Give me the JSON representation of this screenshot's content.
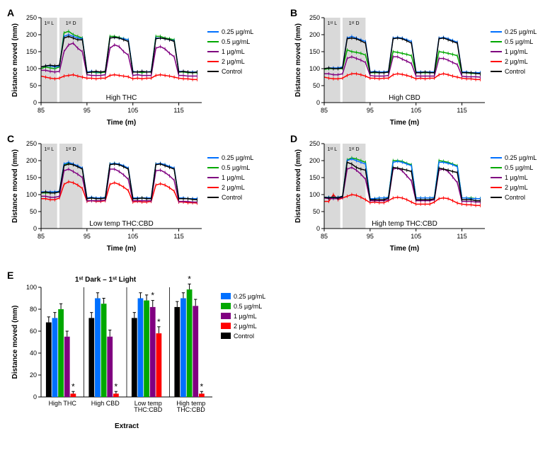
{
  "colors": {
    "c025": "#0070ff",
    "c05": "#00a800",
    "c1": "#800080",
    "c2": "#ff0000",
    "ctrl": "#000000",
    "shade": "#d9d9d9",
    "sig": "#000000"
  },
  "legend_items": [
    {
      "label": "0.25 µg/mL",
      "color": "#0070ff"
    },
    {
      "label": "0.5 µg/mL",
      "color": "#00a800"
    },
    {
      "label": "1 µg/mL",
      "color": "#800080"
    },
    {
      "label": "2 µg/mL",
      "color": "#ff0000"
    },
    {
      "label": "Control",
      "color": "#000000"
    }
  ],
  "line_panels": {
    "common": {
      "xlabel": "Time (m)",
      "ylabel": "Distance moved (mm)",
      "xlim": [
        85,
        120
      ],
      "ylim": [
        0,
        250
      ],
      "xticks": [
        85,
        95,
        105,
        115
      ],
      "yticks": [
        0,
        50,
        100,
        150,
        200,
        250
      ],
      "shade1_label": "1ˢᵗ L",
      "shade2_label": "1ˢᵗ D",
      "shade1": [
        85,
        88.5
      ],
      "shade2": [
        89,
        94
      ],
      "x_points": [
        85,
        86,
        87,
        88,
        89,
        90,
        91,
        92,
        93,
        94,
        95,
        96,
        97,
        98,
        99,
        100,
        101,
        102,
        103,
        104,
        105,
        106,
        107,
        108,
        109,
        110,
        111,
        112,
        113,
        114,
        115,
        116,
        117,
        118,
        119
      ]
    },
    "panels": [
      {
        "letter": "A",
        "title": "High THC",
        "series": {
          "ctrl": [
            105,
            108,
            110,
            108,
            110,
            190,
            195,
            190,
            185,
            185,
            88,
            90,
            92,
            90,
            92,
            190,
            192,
            190,
            185,
            180,
            90,
            90,
            92,
            90,
            90,
            188,
            190,
            188,
            185,
            180,
            90,
            92,
            90,
            88,
            90
          ],
          "c025": [
            105,
            108,
            108,
            105,
            108,
            195,
            200,
            195,
            190,
            188,
            90,
            92,
            90,
            90,
            92,
            190,
            192,
            190,
            188,
            185,
            92,
            90,
            92,
            90,
            92,
            190,
            190,
            188,
            185,
            182,
            92,
            92,
            90,
            90,
            90
          ],
          "c05": [
            100,
            105,
            102,
            100,
            105,
            205,
            210,
            200,
            195,
            190,
            88,
            90,
            88,
            88,
            90,
            195,
            195,
            192,
            188,
            185,
            90,
            90,
            88,
            90,
            90,
            195,
            195,
            190,
            188,
            185,
            90,
            90,
            88,
            88,
            88
          ],
          "c1": [
            95,
            95,
            92,
            90,
            92,
            150,
            170,
            175,
            160,
            150,
            82,
            80,
            80,
            80,
            82,
            160,
            170,
            165,
            150,
            140,
            80,
            82,
            80,
            80,
            80,
            160,
            165,
            158,
            145,
            135,
            80,
            80,
            78,
            78,
            78
          ],
          "c2": [
            78,
            75,
            72,
            70,
            72,
            78,
            80,
            82,
            78,
            75,
            72,
            72,
            70,
            72,
            72,
            80,
            82,
            80,
            78,
            76,
            70,
            72,
            70,
            72,
            72,
            80,
            82,
            80,
            78,
            75,
            72,
            70,
            70,
            68,
            68
          ]
        }
      },
      {
        "letter": "B",
        "title": "High CBD",
        "series": {
          "ctrl": [
            100,
            102,
            100,
            100,
            102,
            188,
            190,
            188,
            182,
            175,
            88,
            90,
            88,
            88,
            90,
            188,
            190,
            188,
            182,
            175,
            88,
            88,
            90,
            88,
            88,
            188,
            190,
            185,
            180,
            175,
            88,
            88,
            88,
            86,
            85
          ],
          "c025": [
            100,
            102,
            102,
            102,
            105,
            190,
            195,
            190,
            185,
            180,
            90,
            92,
            90,
            90,
            92,
            190,
            192,
            190,
            185,
            180,
            90,
            90,
            90,
            90,
            90,
            190,
            192,
            188,
            183,
            178,
            90,
            90,
            88,
            88,
            88
          ],
          "c05": [
            98,
            100,
            100,
            100,
            100,
            155,
            150,
            148,
            145,
            140,
            88,
            88,
            88,
            88,
            90,
            150,
            148,
            145,
            142,
            138,
            88,
            88,
            88,
            88,
            88,
            150,
            148,
            145,
            142,
            138,
            88,
            88,
            86,
            86,
            85
          ],
          "c1": [
            85,
            85,
            82,
            82,
            85,
            130,
            135,
            130,
            125,
            118,
            80,
            78,
            78,
            78,
            80,
            135,
            135,
            128,
            122,
            115,
            78,
            78,
            78,
            78,
            78,
            130,
            130,
            125,
            118,
            112,
            78,
            76,
            76,
            76,
            75
          ],
          "c2": [
            75,
            72,
            70,
            70,
            72,
            80,
            85,
            85,
            82,
            78,
            72,
            72,
            70,
            72,
            72,
            82,
            85,
            83,
            80,
            76,
            70,
            72,
            70,
            72,
            72,
            82,
            85,
            82,
            78,
            75,
            72,
            70,
            70,
            68,
            68
          ]
        }
      },
      {
        "letter": "C",
        "title": "Low temp THC:CBD",
        "series": {
          "ctrl": [
            105,
            108,
            105,
            105,
            108,
            185,
            190,
            188,
            182,
            175,
            88,
            90,
            88,
            88,
            90,
            188,
            190,
            188,
            182,
            175,
            88,
            88,
            90,
            88,
            88,
            188,
            190,
            185,
            180,
            175,
            88,
            88,
            88,
            86,
            85
          ],
          "c025": [
            108,
            108,
            108,
            108,
            110,
            190,
            195,
            190,
            185,
            178,
            90,
            92,
            90,
            90,
            92,
            190,
            192,
            190,
            185,
            178,
            90,
            90,
            90,
            90,
            90,
            190,
            192,
            188,
            183,
            178,
            90,
            90,
            88,
            88,
            88
          ],
          "c05": [
            105,
            105,
            105,
            105,
            108,
            188,
            192,
            188,
            183,
            175,
            88,
            90,
            88,
            88,
            90,
            190,
            192,
            188,
            183,
            175,
            88,
            88,
            90,
            88,
            88,
            190,
            190,
            188,
            182,
            175,
            88,
            88,
            88,
            86,
            85
          ],
          "c1": [
            95,
            95,
            92,
            92,
            95,
            170,
            175,
            168,
            160,
            150,
            82,
            82,
            82,
            82,
            84,
            175,
            175,
            168,
            158,
            145,
            82,
            82,
            82,
            82,
            82,
            170,
            172,
            165,
            155,
            142,
            80,
            80,
            80,
            78,
            78
          ],
          "c2": [
            88,
            88,
            85,
            85,
            90,
            130,
            138,
            135,
            128,
            118,
            80,
            82,
            80,
            80,
            82,
            130,
            135,
            130,
            122,
            112,
            78,
            80,
            78,
            78,
            80,
            128,
            132,
            128,
            120,
            110,
            78,
            78,
            76,
            76,
            75
          ]
        }
      },
      {
        "letter": "D",
        "title": "High temp THC:CBD",
        "series": {
          "ctrl": [
            92,
            90,
            92,
            90,
            95,
            195,
            190,
            180,
            175,
            172,
            85,
            85,
            85,
            85,
            90,
            180,
            178,
            175,
            172,
            168,
            85,
            85,
            85,
            85,
            88,
            178,
            175,
            172,
            168,
            165,
            85,
            85,
            85,
            82,
            82
          ],
          "c025": [
            92,
            92,
            92,
            92,
            95,
            200,
            205,
            200,
            195,
            190,
            88,
            88,
            90,
            90,
            92,
            195,
            198,
            195,
            190,
            185,
            90,
            90,
            90,
            90,
            92,
            195,
            195,
            192,
            188,
            182,
            90,
            90,
            88,
            88,
            88
          ],
          "c05": [
            92,
            92,
            92,
            92,
            95,
            202,
            208,
            205,
            200,
            195,
            88,
            88,
            90,
            90,
            92,
            200,
            200,
            198,
            192,
            188,
            90,
            90,
            90,
            90,
            92,
            200,
            198,
            195,
            190,
            185,
            90,
            90,
            90,
            88,
            88
          ],
          "c1": [
            90,
            88,
            88,
            88,
            92,
            175,
            180,
            172,
            160,
            145,
            82,
            82,
            82,
            82,
            85,
            175,
            178,
            170,
            155,
            140,
            82,
            82,
            82,
            82,
            85,
            172,
            175,
            168,
            152,
            135,
            80,
            80,
            80,
            78,
            78
          ],
          "c2": [
            80,
            80,
            100,
            85,
            90,
            95,
            100,
            98,
            92,
            85,
            76,
            78,
            76,
            76,
            82,
            90,
            92,
            90,
            85,
            78,
            72,
            72,
            72,
            72,
            78,
            88,
            90,
            88,
            82,
            75,
            72,
            70,
            70,
            68,
            68
          ]
        }
      }
    ]
  },
  "bar_panel": {
    "letter": "E",
    "title": "1ˢᵗ Dark – 1ˢᵗ Light",
    "ylabel": "Distance moved (mm)",
    "xlabel": "Extract",
    "ylim": [
      0,
      100
    ],
    "yticks": [
      0,
      20,
      40,
      60,
      80,
      100
    ],
    "groups": [
      {
        "label": "High THC",
        "bars": [
          {
            "key": "ctrl",
            "value": 68,
            "err": 5
          },
          {
            "key": "c025",
            "value": 72,
            "err": 5
          },
          {
            "key": "c05",
            "value": 80,
            "err": 5
          },
          {
            "key": "c1",
            "value": 55,
            "err": 5
          },
          {
            "key": "c2",
            "value": 3,
            "err": 2,
            "sig": true
          }
        ]
      },
      {
        "label": "High CBD",
        "bars": [
          {
            "key": "ctrl",
            "value": 72,
            "err": 5
          },
          {
            "key": "c025",
            "value": 90,
            "err": 5
          },
          {
            "key": "c05",
            "value": 85,
            "err": 5
          },
          {
            "key": "c1",
            "value": 55,
            "err": 6
          },
          {
            "key": "c2",
            "value": 3,
            "err": 2,
            "sig": true
          }
        ]
      },
      {
        "label": "Low temp\nTHC:CBD",
        "bars": [
          {
            "key": "ctrl",
            "value": 72,
            "err": 5
          },
          {
            "key": "c025",
            "value": 90,
            "err": 5
          },
          {
            "key": "c05",
            "value": 88,
            "err": 5
          },
          {
            "key": "c1",
            "value": 82,
            "err": 6,
            "sig": true
          },
          {
            "key": "c2",
            "value": 58,
            "err": 6,
            "sig": true
          }
        ]
      },
      {
        "label": "High temp\nTHC:CBD",
        "bars": [
          {
            "key": "ctrl",
            "value": 82,
            "err": 5
          },
          {
            "key": "c025",
            "value": 90,
            "err": 5
          },
          {
            "key": "c05",
            "value": 98,
            "err": 5,
            "sig": true
          },
          {
            "key": "c1",
            "value": 83,
            "err": 6
          },
          {
            "key": "c2",
            "value": 3,
            "err": 2,
            "sig": true
          }
        ]
      }
    ],
    "bar_color_map": {
      "ctrl": "#000000",
      "c025": "#0070ff",
      "c05": "#00a800",
      "c1": "#800080",
      "c2": "#ff0000"
    }
  }
}
